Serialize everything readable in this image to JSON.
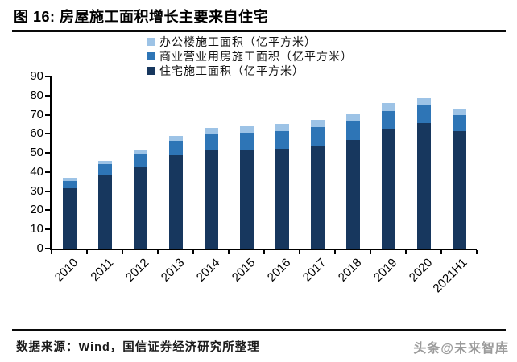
{
  "header": {
    "title": "图 16:  房屋施工面积增长主要来自住宅"
  },
  "footer": {
    "source": "数据来源：Wind，国信证券经济研究所整理",
    "watermark": "头条@未来智库"
  },
  "colors": {
    "office": "#9DC3E6",
    "commercial": "#2E75B6",
    "residential": "#17375E",
    "axis": "#000000",
    "rule": "#0a0a0a",
    "watermark_gray": "#9b9b9b"
  },
  "chart_data": {
    "type": "bar",
    "stacked": true,
    "grid": false,
    "legend_position": "top-center",
    "xlabel": "",
    "ylabel": "",
    "ylim": [
      0,
      90
    ],
    "y_tick_step": 10,
    "y_ticks": [
      0,
      10,
      20,
      30,
      40,
      50,
      60,
      70,
      80,
      90
    ],
    "categories": [
      "2010",
      "2011",
      "2012",
      "2013",
      "2014",
      "2015",
      "2016",
      "2017",
      "2018",
      "2019",
      "2020",
      "2021H1"
    ],
    "series": [
      {
        "name": "办公楼施工面积（亿平方米）",
        "color": "#9DC3E6",
        "values": [
          1.5,
          2.0,
          2.3,
          2.6,
          3.3,
          3.6,
          3.6,
          3.8,
          3.7,
          4.0,
          3.9,
          3.4
        ]
      },
      {
        "name": "商业营业用房施工面积（亿平方米）",
        "color": "#2E75B6",
        "values": [
          4.0,
          5.5,
          6.6,
          7.6,
          8.5,
          9.3,
          9.6,
          9.9,
          9.7,
          9.6,
          9.3,
          8.5
        ]
      },
      {
        "name": "住宅施工面积（亿平方米）",
        "color": "#17375E",
        "values": [
          31.5,
          38.5,
          42.9,
          48.6,
          51.2,
          51.2,
          52.0,
          53.6,
          56.8,
          62.5,
          65.5,
          61.3
        ]
      }
    ],
    "stack_order": "last-series-at-bottom"
  }
}
